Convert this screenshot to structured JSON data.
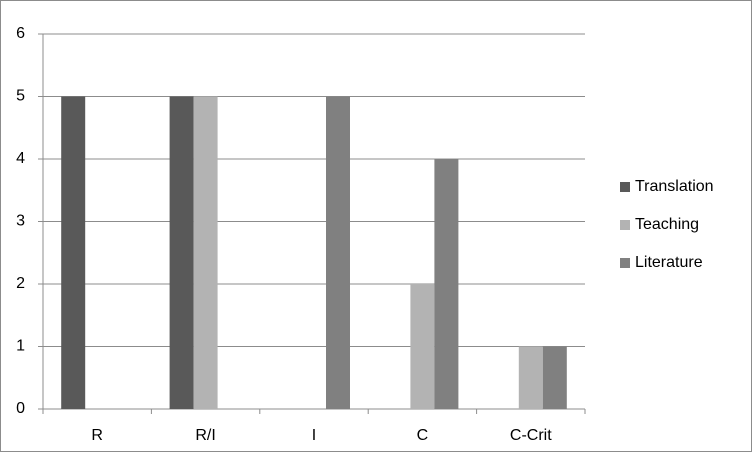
{
  "chart_data": {
    "type": "bar",
    "categories": [
      "R",
      "R/I",
      "I",
      "C",
      "C-Crit"
    ],
    "series": [
      {
        "name": "Translation",
        "color": "#595959",
        "values": [
          5,
          5,
          0,
          0,
          0
        ]
      },
      {
        "name": "Teaching",
        "color": "#b3b3b3",
        "values": [
          0,
          5,
          0,
          2,
          1
        ]
      },
      {
        "name": "Literature",
        "color": "#808080",
        "values": [
          0,
          0,
          5,
          4,
          1
        ]
      }
    ],
    "ylim": [
      0,
      6
    ],
    "yticks": [
      0,
      1,
      2,
      3,
      4,
      5,
      6
    ],
    "grid": true,
    "legend": "right"
  }
}
